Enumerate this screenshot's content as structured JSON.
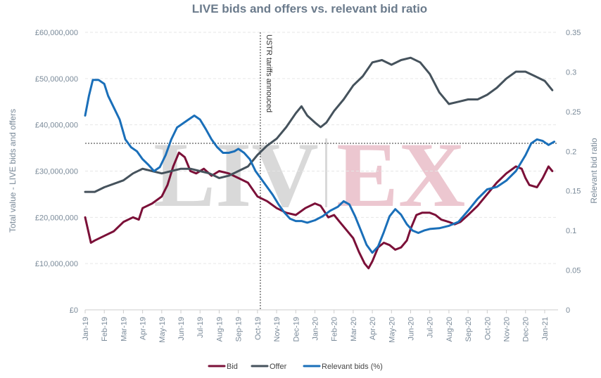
{
  "chart_data": {
    "type": "line",
    "title": "LIVE bids and offers vs. relevant bid ratio",
    "ylabel_left": "Total value - LIVE bids and offers",
    "ylabel_right": "Relevant bid ratio",
    "ylim_left": [
      0,
      60000000
    ],
    "ylim_right": [
      0,
      0.35
    ],
    "y_ticks_left": [
      "£0",
      "£10,000,000",
      "£20,000,000",
      "£30,000,000",
      "£40,000,000",
      "£50,000,000",
      "£60,000,000"
    ],
    "y_ticks_right": [
      "0",
      "0.05",
      "0.1",
      "0.15",
      "0.2",
      "0.25",
      "0.3",
      "0.35"
    ],
    "x_ticks": [
      "Jan-19",
      "Feb-19",
      "Mar-19",
      "Apr-19",
      "May-19",
      "Jun-19",
      "Jul-19",
      "Aug-19",
      "Sep-19",
      "Oct-19",
      "Nov-19",
      "Dec-19",
      "Jan-20",
      "Feb-20",
      "Mar-20",
      "Apr-20",
      "May-20",
      "Jun-20",
      "Jul-20",
      "Aug-20",
      "Sep-20",
      "Oct-20",
      "Nov-20",
      "Dec-20",
      "Jan-21"
    ],
    "grid": true,
    "legend_position": "bottom",
    "reference_line_right_axis": 0.21,
    "annotation": {
      "label": "USTR tariffs annouced",
      "x": 9.15
    },
    "watermark": "LIV|EX",
    "series": [
      {
        "name": "Bid",
        "color": "#7b1038",
        "axis": "left",
        "points": [
          [
            0,
            20000000
          ],
          [
            0.3,
            14500000
          ],
          [
            0.5,
            15000000
          ],
          [
            1,
            16000000
          ],
          [
            1.5,
            17000000
          ],
          [
            2,
            19000000
          ],
          [
            2.5,
            20000000
          ],
          [
            2.8,
            19500000
          ],
          [
            3,
            22000000
          ],
          [
            3.5,
            23000000
          ],
          [
            4,
            24500000
          ],
          [
            4.3,
            27000000
          ],
          [
            4.6,
            31000000
          ],
          [
            4.9,
            34000000
          ],
          [
            5.2,
            33000000
          ],
          [
            5.5,
            30000000
          ],
          [
            5.8,
            29500000
          ],
          [
            6.2,
            30500000
          ],
          [
            6.6,
            29000000
          ],
          [
            7,
            30000000
          ],
          [
            7.5,
            29500000
          ],
          [
            8,
            28500000
          ],
          [
            8.5,
            27500000
          ],
          [
            9,
            24500000
          ],
          [
            9.5,
            23500000
          ],
          [
            10,
            22000000
          ],
          [
            10.5,
            21000000
          ],
          [
            11,
            20500000
          ],
          [
            11.5,
            22000000
          ],
          [
            12,
            23000000
          ],
          [
            12.3,
            22500000
          ],
          [
            12.7,
            20000000
          ],
          [
            13,
            20500000
          ],
          [
            13.3,
            19000000
          ],
          [
            13.7,
            17000000
          ],
          [
            14,
            15500000
          ],
          [
            14.3,
            12500000
          ],
          [
            14.6,
            10000000
          ],
          [
            14.8,
            9000000
          ],
          [
            15,
            10500000
          ],
          [
            15.3,
            13500000
          ],
          [
            15.6,
            14500000
          ],
          [
            15.9,
            14000000
          ],
          [
            16.2,
            13000000
          ],
          [
            16.5,
            13500000
          ],
          [
            16.8,
            15000000
          ],
          [
            17,
            17500000
          ],
          [
            17.3,
            20500000
          ],
          [
            17.6,
            21000000
          ],
          [
            18,
            21000000
          ],
          [
            18.3,
            20500000
          ],
          [
            18.6,
            19500000
          ],
          [
            19,
            19000000
          ],
          [
            19.3,
            18500000
          ],
          [
            19.6,
            19000000
          ],
          [
            20,
            20500000
          ],
          [
            20.5,
            22500000
          ],
          [
            21,
            25000000
          ],
          [
            21.5,
            27500000
          ],
          [
            22,
            29500000
          ],
          [
            22.5,
            31000000
          ],
          [
            22.8,
            30500000
          ],
          [
            23,
            28500000
          ],
          [
            23.2,
            27000000
          ],
          [
            23.6,
            26500000
          ],
          [
            23.9,
            28500000
          ],
          [
            24.2,
            31000000
          ],
          [
            24.4,
            30000000
          ]
        ]
      },
      {
        "name": "Offer",
        "color": "#45525c",
        "axis": "left",
        "points": [
          [
            0,
            25500000
          ],
          [
            0.5,
            25500000
          ],
          [
            1,
            26500000
          ],
          [
            2,
            28000000
          ],
          [
            2.5,
            29500000
          ],
          [
            3,
            30500000
          ],
          [
            3.5,
            30000000
          ],
          [
            4,
            29500000
          ],
          [
            4.5,
            30000000
          ],
          [
            5,
            30500000
          ],
          [
            5.5,
            30500000
          ],
          [
            6,
            30000000
          ],
          [
            6.5,
            29500000
          ],
          [
            7,
            28500000
          ],
          [
            7.5,
            29000000
          ],
          [
            8,
            30000000
          ],
          [
            8.5,
            31000000
          ],
          [
            9,
            33500000
          ],
          [
            9.5,
            35500000
          ],
          [
            10,
            37000000
          ],
          [
            10.5,
            39500000
          ],
          [
            11,
            42500000
          ],
          [
            11.3,
            44000000
          ],
          [
            11.6,
            42000000
          ],
          [
            12,
            40500000
          ],
          [
            12.3,
            39500000
          ],
          [
            12.6,
            40500000
          ],
          [
            13,
            43000000
          ],
          [
            13.5,
            45500000
          ],
          [
            14,
            48500000
          ],
          [
            14.5,
            50500000
          ],
          [
            15,
            53500000
          ],
          [
            15.5,
            54000000
          ],
          [
            16,
            53000000
          ],
          [
            16.5,
            54000000
          ],
          [
            17,
            54500000
          ],
          [
            17.5,
            53500000
          ],
          [
            18,
            51000000
          ],
          [
            18.5,
            47000000
          ],
          [
            19,
            44500000
          ],
          [
            19.5,
            45000000
          ],
          [
            20,
            45500000
          ],
          [
            20.5,
            45500000
          ],
          [
            21,
            46500000
          ],
          [
            21.5,
            48000000
          ],
          [
            22,
            50000000
          ],
          [
            22.5,
            51500000
          ],
          [
            23,
            51500000
          ],
          [
            23.5,
            50500000
          ],
          [
            24,
            49500000
          ],
          [
            24.4,
            47500000
          ]
        ]
      },
      {
        "name": "Relevant bids (%)",
        "color": "#1a6fb9",
        "axis": "right",
        "points": [
          [
            0,
            0.245
          ],
          [
            0.2,
            0.27
          ],
          [
            0.4,
            0.29
          ],
          [
            0.7,
            0.29
          ],
          [
            1,
            0.285
          ],
          [
            1.2,
            0.27
          ],
          [
            1.5,
            0.255
          ],
          [
            1.8,
            0.24
          ],
          [
            2.1,
            0.215
          ],
          [
            2.4,
            0.205
          ],
          [
            2.7,
            0.2
          ],
          [
            3,
            0.19
          ],
          [
            3.3,
            0.183
          ],
          [
            3.6,
            0.175
          ],
          [
            3.9,
            0.18
          ],
          [
            4.2,
            0.195
          ],
          [
            4.5,
            0.215
          ],
          [
            4.8,
            0.23
          ],
          [
            5.1,
            0.235
          ],
          [
            5.4,
            0.24
          ],
          [
            5.7,
            0.245
          ],
          [
            6,
            0.24
          ],
          [
            6.3,
            0.228
          ],
          [
            6.6,
            0.215
          ],
          [
            6.9,
            0.205
          ],
          [
            7.2,
            0.198
          ],
          [
            7.5,
            0.198
          ],
          [
            7.8,
            0.2
          ],
          [
            8,
            0.203
          ],
          [
            8.3,
            0.198
          ],
          [
            8.6,
            0.19
          ],
          [
            8.9,
            0.175
          ],
          [
            9.2,
            0.165
          ],
          [
            9.5,
            0.155
          ],
          [
            9.8,
            0.145
          ],
          [
            10.1,
            0.133
          ],
          [
            10.4,
            0.123
          ],
          [
            10.7,
            0.115
          ],
          [
            11,
            0.112
          ],
          [
            11.3,
            0.112
          ],
          [
            11.6,
            0.11
          ],
          [
            12,
            0.113
          ],
          [
            12.4,
            0.118
          ],
          [
            12.8,
            0.125
          ],
          [
            13.2,
            0.13
          ],
          [
            13.5,
            0.137
          ],
          [
            13.8,
            0.133
          ],
          [
            14.1,
            0.118
          ],
          [
            14.4,
            0.1
          ],
          [
            14.7,
            0.082
          ],
          [
            15,
            0.072
          ],
          [
            15.3,
            0.08
          ],
          [
            15.6,
            0.098
          ],
          [
            15.9,
            0.118
          ],
          [
            16.2,
            0.127
          ],
          [
            16.5,
            0.12
          ],
          [
            16.8,
            0.108
          ],
          [
            17.1,
            0.1
          ],
          [
            17.4,
            0.097
          ],
          [
            17.7,
            0.1
          ],
          [
            18,
            0.102
          ],
          [
            18.5,
            0.103
          ],
          [
            19,
            0.106
          ],
          [
            19.5,
            0.111
          ],
          [
            20,
            0.125
          ],
          [
            20.5,
            0.14
          ],
          [
            21,
            0.152
          ],
          [
            21.5,
            0.155
          ],
          [
            22,
            0.163
          ],
          [
            22.5,
            0.175
          ],
          [
            23,
            0.195
          ],
          [
            23.3,
            0.21
          ],
          [
            23.6,
            0.215
          ],
          [
            23.9,
            0.213
          ],
          [
            24.2,
            0.208
          ],
          [
            24.5,
            0.212
          ]
        ]
      }
    ]
  }
}
